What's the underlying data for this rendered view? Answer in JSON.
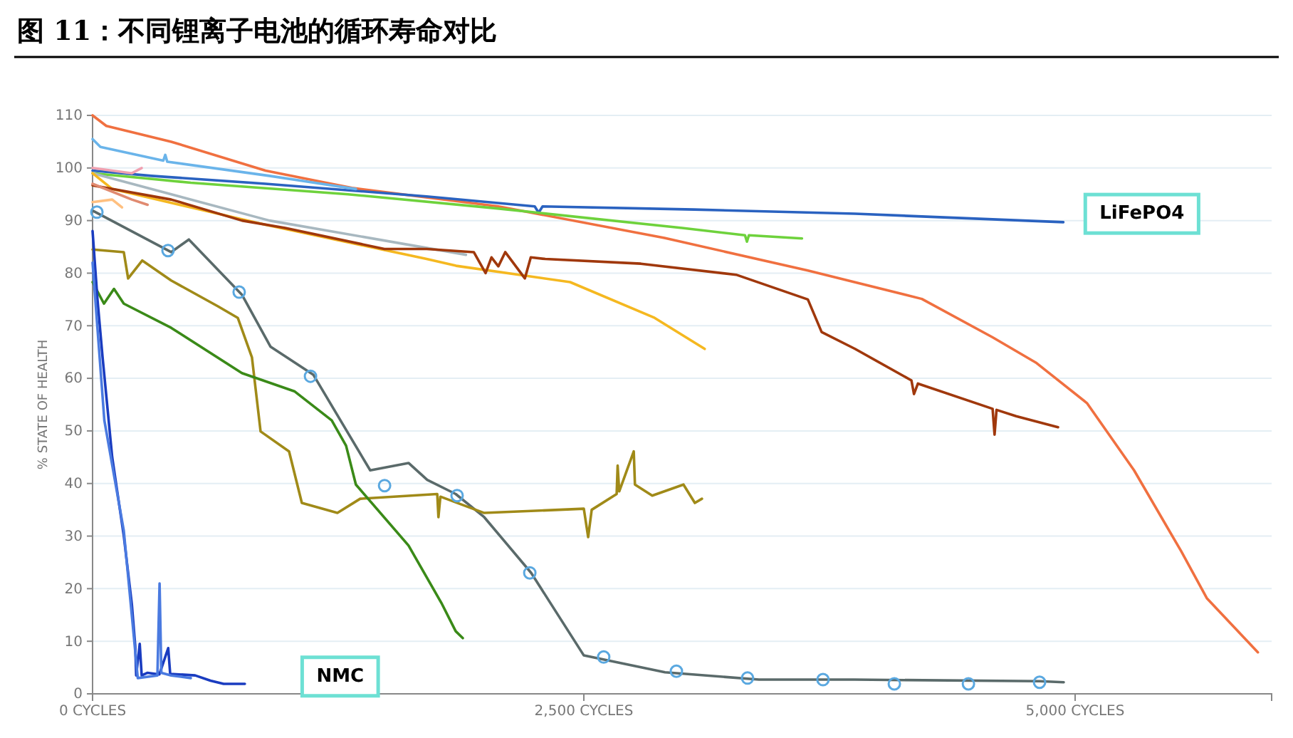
{
  "chart_data": {
    "type": "line",
    "title": "图 11：不同锂离子电池的循环寿命对比",
    "ylabel": "% STATE OF HEALTH",
    "xlim": [
      0,
      6000
    ],
    "xticks": [
      {
        "value": 0,
        "label": "0 CYCLES"
      },
      {
        "value": 2500,
        "label": "2,500 CYCLES"
      },
      {
        "value": 5000,
        "label": "5,000 CYCLES"
      }
    ],
    "ylim": [
      0,
      110
    ],
    "yticks": [
      0,
      10,
      20,
      30,
      40,
      50,
      60,
      70,
      80,
      90,
      100,
      110
    ],
    "grid": "y",
    "annotations": [
      "NMC",
      "LiFePO4"
    ],
    "series": [
      {
        "color": "#f07040",
        "x": [
          0,
          70,
          400,
          880,
          1320,
          2065,
          2910,
          3640,
          4220,
          4580,
          4800,
          5060,
          5300,
          5540,
          5670,
          5930
        ],
        "values": [
          110,
          108,
          105,
          99.5,
          96.2,
          92.7,
          86.7,
          80.5,
          75.1,
          67.8,
          63,
          55.3,
          42.5,
          27.1,
          18.2,
          7.9
        ]
      },
      {
        "color": "#2a62c0",
        "x": [
          0,
          300,
          880,
          1700,
          2250,
          2270,
          2290,
          3060,
          3880,
          4940
        ],
        "values": [
          99.5,
          98.5,
          97,
          94.6,
          92.7,
          91.5,
          92.7,
          92.1,
          91.3,
          89.7
        ]
      },
      {
        "color": "#6ab4ea",
        "x": [
          0,
          40,
          360,
          370,
          380,
          900,
          1340
        ],
        "values": [
          105.5,
          104,
          101.4,
          102.5,
          101.2,
          98.5,
          96
        ]
      },
      {
        "color": "#6ed23c",
        "x": [
          0,
          500,
          1300,
          2060,
          3000,
          3320,
          3330,
          3340,
          3610
        ],
        "values": [
          99,
          97.2,
          95,
          92.3,
          88.6,
          87.2,
          86,
          87.2,
          86.6
        ]
      },
      {
        "color": "#a8b8c0",
        "x": [
          0,
          900,
          1900
        ],
        "values": [
          99,
          90,
          83.5
        ]
      },
      {
        "color": "#f5b820",
        "x": [
          0,
          100,
          880,
          1700,
          1850,
          2430,
          2860,
          3115
        ],
        "values": [
          99,
          96,
          89.2,
          82.7,
          81.4,
          78.3,
          71.5,
          65.6
        ]
      },
      {
        "color": "#a0380c",
        "x": [
          0,
          400,
          760,
          980,
          1485,
          1700,
          1940,
          2000,
          2030,
          2065,
          2100,
          2200,
          2230,
          2304,
          2790,
          3275,
          3640,
          3710,
          3880,
          4167,
          4180,
          4200,
          4580,
          4590,
          4600,
          4700,
          4913
        ],
        "values": [
          96.7,
          94,
          90,
          88.6,
          84.6,
          84.6,
          84,
          80,
          83,
          81.3,
          84,
          79,
          83,
          82.7,
          81.8,
          79.7,
          75,
          68.8,
          65.6,
          59.6,
          57,
          59,
          54.2,
          49.3,
          54,
          52.8,
          50.7
        ]
      },
      {
        "color": "#f0a0b0",
        "x": [
          0,
          200,
          250
        ],
        "values": [
          100,
          99,
          100
        ]
      },
      {
        "color": "#e08a70",
        "x": [
          0,
          200,
          280
        ],
        "values": [
          97,
          94,
          93
        ]
      },
      {
        "color": "#ffc080",
        "x": [
          0,
          100,
          150
        ],
        "values": [
          93.5,
          94,
          92.5
        ]
      },
      {
        "color": "#5a6a6a",
        "x": [
          0,
          400,
          490,
          760,
          906,
          1123,
          1413,
          1608,
          1703,
          1848,
          1993,
          2232,
          2500,
          2913,
          3391,
          3877,
          4819,
          4942
        ],
        "values": [
          91.9,
          84,
          86.4,
          75.9,
          66,
          60.7,
          42.5,
          43.9,
          40.7,
          38,
          33.6,
          23,
          7.3,
          4.1,
          2.7,
          2.7,
          2.4,
          2.2
        ]
      },
      {
        "color": "#a08a18",
        "x": [
          0,
          159,
          181,
          253,
          400,
          638,
          739,
          811,
          855,
          1000,
          1065,
          1246,
          1362,
          1754,
          1760,
          1770,
          1993,
          2500,
          2522,
          2540,
          2667,
          2672,
          2680,
          2754,
          2760,
          2848,
          3007,
          3065,
          3101
        ],
        "values": [
          84.5,
          84,
          79,
          82.4,
          78.6,
          73.7,
          71.5,
          64,
          49.9,
          46.1,
          36.3,
          34.4,
          37.1,
          38,
          33.6,
          37.5,
          34.4,
          35.2,
          29.8,
          35,
          38,
          43.4,
          38.5,
          46.1,
          39.8,
          37.7,
          39.8,
          36.3,
          37.1
        ]
      },
      {
        "color": "#3a8a18",
        "x": [
          0,
          58,
          109,
          159,
          400,
          760,
          1029,
          1217,
          1290,
          1340,
          1608,
          1775,
          1848,
          1884
        ],
        "values": [
          78.3,
          74.2,
          77,
          74.2,
          69.6,
          61,
          57.5,
          52,
          47.2,
          39.8,
          28.2,
          17.3,
          11.9,
          10.6
        ]
      },
      {
        "color": "#1a3cc0",
        "x": [
          0,
          25,
          51,
          100,
          159,
          200,
          217,
          222,
          240,
          250,
          280,
          340,
          385,
          395,
          522,
          600,
          667,
          775
        ],
        "values": [
          88,
          75,
          64,
          45,
          30,
          17,
          9.2,
          3.5,
          9.5,
          3.5,
          4,
          3.7,
          8.7,
          3.8,
          3.5,
          2.5,
          1.9,
          1.9
        ]
      },
      {
        "color": "#4a7ae0",
        "x": [
          0,
          60,
          159,
          230,
          330,
          341,
          350,
          400,
          500
        ],
        "values": [
          82,
          52,
          31,
          3,
          3.5,
          21,
          4,
          3.5,
          3
        ]
      },
      {
        "type": "scatter",
        "marker": "circle",
        "color": "#5aa8e0",
        "x": [
          22,
          384,
          746,
          1109,
          1486,
          1855,
          2225,
          2601,
          2971,
          3333,
          3717,
          4080,
          4457,
          4819
        ],
        "values": [
          91.6,
          84.3,
          76.4,
          60.4,
          39.6,
          37.7,
          23.0,
          7.0,
          4.3,
          3.0,
          2.7,
          1.9,
          1.9,
          2.2
        ]
      }
    ]
  }
}
